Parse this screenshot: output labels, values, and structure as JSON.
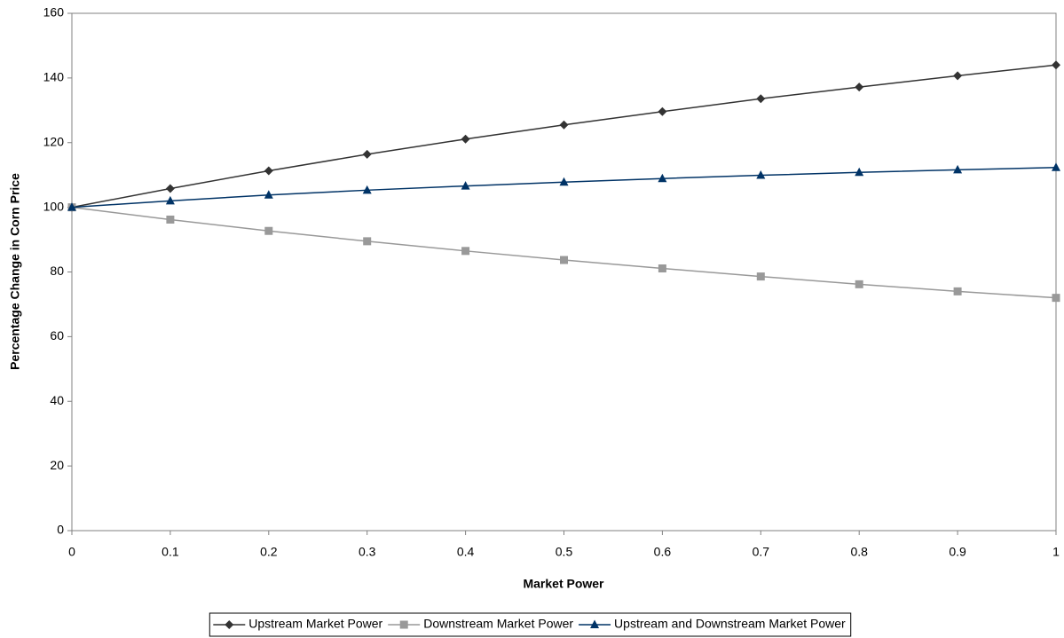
{
  "chart_data": {
    "type": "line",
    "x_label": "Market Power",
    "y_label": "Percentage Change in Corn Price",
    "x": [
      0,
      0.1,
      0.2,
      0.3,
      0.4,
      0.5,
      0.6,
      0.7,
      0.8,
      0.9,
      1
    ],
    "series": [
      {
        "name": "Upstream Market Power",
        "color": "#333333",
        "marker": "diamond",
        "values": [
          100,
          105.8,
          111.3,
          116.4,
          121.1,
          125.5,
          129.6,
          133.6,
          137.2,
          140.7,
          144.0
        ]
      },
      {
        "name": "Downstream Market Power",
        "color": "#999999",
        "marker": "square",
        "values": [
          100,
          96.2,
          92.7,
          89.5,
          86.5,
          83.7,
          81.1,
          78.6,
          76.2,
          74.0,
          72.0
        ]
      },
      {
        "name": "Upstream and Downstream Market Power",
        "color": "#003366",
        "marker": "triangle",
        "values": [
          100,
          102.0,
          103.8,
          105.3,
          106.6,
          107.8,
          108.9,
          109.9,
          110.8,
          111.6,
          112.3
        ]
      }
    ],
    "xlim": [
      0,
      1
    ],
    "xticks": [
      0,
      0.1,
      0.2,
      0.3,
      0.4,
      0.5,
      0.6,
      0.7,
      0.8,
      0.9,
      1
    ],
    "ylim": [
      0,
      160
    ],
    "yticks": [
      0,
      20,
      40,
      60,
      80,
      100,
      120,
      140,
      160
    ],
    "grid": false,
    "legend": "bottom"
  }
}
